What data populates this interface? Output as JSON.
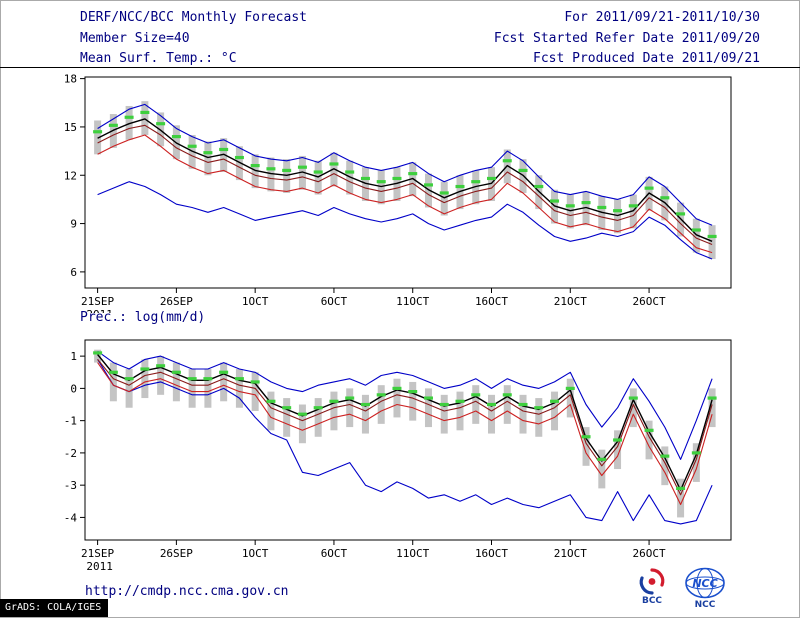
{
  "header": {
    "title": "DERF/NCC/BCC Monthly Forecast",
    "member_size": "Member Size=40",
    "for_range": "For 2011/09/21-2011/10/30",
    "refer_date": "Fcst Started Refer Date 2011/09/20",
    "produced_date": "Fcst Produced Date 2011/09/21"
  },
  "footer": {
    "url": "http://cmdp.ncc.cma.gov.cn",
    "grads_credit": "GrADS: COLA/IGES",
    "logos": [
      {
        "label": "BCC"
      },
      {
        "label": "NCC"
      }
    ]
  },
  "colors": {
    "header_text": "#000080",
    "envelope_blue": "#0000c8",
    "spread_red_dark": "#8b1a1a",
    "spread_red": "#cc2222",
    "mean_black": "#000000",
    "median_green": "#3ecf3e",
    "range_bar_gray": "#c4c4c4"
  },
  "chart_data": [
    {
      "type": "line",
      "title": "Mean Surf. Temp.: °C",
      "x_tick_labels": [
        "21SEP",
        "26SEP",
        "1OCT",
        "6OCT",
        "11OCT",
        "16OCT",
        "21OCT",
        "26OCT"
      ],
      "x_tick_positions": [
        0,
        5,
        10,
        15,
        20,
        25,
        30,
        35
      ],
      "x_sub_label": "2011",
      "xlim": [
        -0.8,
        40.2
      ],
      "ylim": [
        5.0,
        18.1
      ],
      "yticks": [
        6,
        9,
        12,
        15,
        18
      ],
      "grid": false,
      "legend": "none",
      "bars": {
        "name": "ensemble-range-bars",
        "color": "#c4c4c4",
        "top": [
          15.4,
          15.8,
          16.3,
          16.6,
          15.9,
          15.1,
          14.5,
          14.1,
          14.3,
          13.8,
          13.3,
          13.1,
          13.0,
          13.2,
          12.9,
          13.4,
          12.9,
          12.5,
          12.3,
          12.5,
          12.8,
          12.1,
          11.6,
          12.0,
          12.3,
          12.5,
          13.6,
          13.0,
          12.0,
          11.1,
          10.8,
          11.0,
          10.7,
          10.5,
          10.8,
          11.9,
          11.3,
          10.3,
          9.3,
          8.9
        ],
        "bottom": [
          13.3,
          13.7,
          14.2,
          14.5,
          13.8,
          13.0,
          12.4,
          12.0,
          12.2,
          11.7,
          11.2,
          11.0,
          10.9,
          11.1,
          10.8,
          11.3,
          10.8,
          10.4,
          10.2,
          10.4,
          10.7,
          10.0,
          9.5,
          9.9,
          10.2,
          10.4,
          11.5,
          10.9,
          9.9,
          9.0,
          8.7,
          8.9,
          8.6,
          8.4,
          8.7,
          9.8,
          9.2,
          8.2,
          7.2,
          6.8
        ]
      },
      "series": [
        {
          "name": "ensemble-max",
          "color": "#0000c8",
          "width": 1.1,
          "values": [
            14.9,
            15.5,
            16.1,
            16.4,
            15.7,
            14.9,
            14.4,
            14.0,
            14.2,
            13.7,
            13.2,
            13.0,
            12.9,
            13.1,
            12.8,
            13.4,
            12.9,
            12.5,
            12.3,
            12.5,
            12.8,
            12.1,
            11.6,
            12.0,
            12.3,
            12.5,
            13.5,
            12.9,
            11.9,
            11.0,
            10.8,
            11.0,
            10.7,
            10.5,
            10.8,
            11.9,
            11.3,
            10.3,
            9.3,
            8.9
          ]
        },
        {
          "name": "ensemble-min",
          "color": "#0000c8",
          "width": 1.1,
          "values": [
            10.8,
            11.2,
            11.6,
            11.3,
            10.8,
            10.2,
            10.0,
            9.7,
            10.0,
            9.6,
            9.2,
            9.4,
            9.6,
            9.8,
            9.5,
            10.0,
            9.6,
            9.3,
            9.1,
            9.3,
            9.6,
            9.0,
            8.6,
            8.9,
            9.2,
            9.4,
            10.2,
            9.7,
            8.9,
            8.2,
            7.9,
            8.1,
            8.4,
            8.2,
            8.5,
            9.4,
            8.9,
            8.0,
            7.2,
            6.8
          ]
        },
        {
          "name": "spread-upper",
          "color": "#8b1a1a",
          "width": 1.1,
          "values": [
            14.0,
            14.5,
            14.9,
            15.1,
            14.5,
            13.7,
            13.2,
            12.8,
            13.0,
            12.5,
            12.0,
            11.8,
            11.7,
            11.9,
            11.6,
            12.1,
            11.6,
            11.2,
            11.0,
            11.2,
            11.5,
            10.8,
            10.3,
            10.7,
            11.0,
            11.2,
            12.2,
            11.6,
            10.7,
            9.8,
            9.5,
            9.7,
            9.4,
            9.2,
            9.5,
            10.6,
            10.0,
            9.0,
            8.1,
            7.7
          ]
        },
        {
          "name": "spread-lower",
          "color": "#cc2222",
          "width": 1.1,
          "values": [
            13.3,
            13.8,
            14.2,
            14.5,
            13.8,
            13.0,
            12.5,
            12.1,
            12.3,
            11.8,
            11.3,
            11.1,
            11.0,
            11.2,
            10.9,
            11.4,
            10.9,
            10.5,
            10.3,
            10.5,
            10.8,
            10.1,
            9.6,
            10.0,
            10.3,
            10.5,
            11.5,
            10.9,
            10.0,
            9.1,
            8.8,
            9.0,
            8.7,
            8.5,
            8.8,
            9.9,
            9.3,
            8.4,
            7.5,
            7.2
          ]
        },
        {
          "name": "ensemble-mean",
          "color": "#000000",
          "width": 1.4,
          "values": [
            14.3,
            14.8,
            15.2,
            15.5,
            14.8,
            14.0,
            13.5,
            13.1,
            13.3,
            12.8,
            12.3,
            12.1,
            12.0,
            12.2,
            11.9,
            12.4,
            11.9,
            11.5,
            11.3,
            11.5,
            11.8,
            11.1,
            10.6,
            11.0,
            11.3,
            11.5,
            12.6,
            12.0,
            11.0,
            10.1,
            9.8,
            10.0,
            9.7,
            9.5,
            9.8,
            10.9,
            10.3,
            9.3,
            8.3,
            7.9
          ]
        }
      ],
      "markers": {
        "name": "ensemble-median-dashes",
        "color": "#3ecf3e",
        "values": [
          14.7,
          15.1,
          15.6,
          15.9,
          15.2,
          14.4,
          13.8,
          13.4,
          13.6,
          13.1,
          12.6,
          12.4,
          12.3,
          12.5,
          12.2,
          12.7,
          12.2,
          11.8,
          11.6,
          11.8,
          12.1,
          11.4,
          10.9,
          11.3,
          11.6,
          11.8,
          12.9,
          12.3,
          11.3,
          10.4,
          10.1,
          10.3,
          10.0,
          9.8,
          10.1,
          11.2,
          10.6,
          9.6,
          8.6,
          8.2
        ]
      }
    },
    {
      "type": "line",
      "title": "Prec.: log(mm/d)",
      "x_tick_labels": [
        "21SEP",
        "26SEP",
        "1OCT",
        "6OCT",
        "11OCT",
        "16OCT",
        "21OCT",
        "26OCT"
      ],
      "x_tick_positions": [
        0,
        5,
        10,
        15,
        20,
        25,
        30,
        35
      ],
      "x_sub_label": "2011",
      "xlim": [
        -0.8,
        40.2
      ],
      "ylim": [
        -4.7,
        1.5
      ],
      "yticks": [
        1,
        0,
        -1,
        -2,
        -3,
        -4
      ],
      "grid": false,
      "legend": "none",
      "bars": {
        "name": "ensemble-range-bars",
        "color": "#c4c4c4",
        "top": [
          1.2,
          0.8,
          0.6,
          0.9,
          1.0,
          0.8,
          0.6,
          0.6,
          0.8,
          0.6,
          0.5,
          -0.1,
          -0.3,
          -0.5,
          -0.3,
          -0.1,
          0.0,
          -0.2,
          0.1,
          0.3,
          0.2,
          0.0,
          -0.2,
          -0.1,
          0.1,
          -0.2,
          0.1,
          -0.2,
          -0.3,
          -0.1,
          0.3,
          -1.2,
          -1.9,
          -1.3,
          0.0,
          -1.0,
          -1.8,
          -2.8,
          -1.7,
          0.0
        ],
        "bottom": [
          0.8,
          -0.4,
          -0.6,
          -0.3,
          -0.2,
          -0.4,
          -0.6,
          -0.6,
          -0.4,
          -0.6,
          -0.7,
          -1.3,
          -1.5,
          -1.7,
          -1.5,
          -1.3,
          -1.2,
          -1.4,
          -1.1,
          -0.9,
          -1.0,
          -1.2,
          -1.4,
          -1.3,
          -1.1,
          -1.4,
          -1.1,
          -1.4,
          -1.5,
          -1.3,
          -0.9,
          -2.4,
          -3.1,
          -2.5,
          -1.2,
          -2.2,
          -3.0,
          -4.0,
          -2.9,
          -1.2
        ]
      },
      "series": [
        {
          "name": "ensemble-max",
          "color": "#0000c8",
          "width": 1.1,
          "values": [
            1.15,
            0.8,
            0.6,
            0.9,
            1.0,
            0.8,
            0.6,
            0.6,
            0.8,
            0.6,
            0.5,
            0.2,
            0.0,
            -0.1,
            0.1,
            0.2,
            0.3,
            0.1,
            0.4,
            0.5,
            0.4,
            0.2,
            0.0,
            0.1,
            0.3,
            0.0,
            0.3,
            0.1,
            0.0,
            0.2,
            0.5,
            -0.5,
            -1.2,
            -0.6,
            0.3,
            -0.4,
            -1.2,
            -2.2,
            -1.0,
            0.3
          ]
        },
        {
          "name": "ensemble-min",
          "color": "#0000c8",
          "width": 1.1,
          "values": [
            0.9,
            0.1,
            -0.1,
            0.1,
            0.2,
            0.0,
            -0.2,
            -0.2,
            0.0,
            -0.3,
            -0.9,
            -1.4,
            -1.6,
            -2.6,
            -2.7,
            -2.5,
            -2.3,
            -3.0,
            -3.2,
            -2.9,
            -3.1,
            -3.4,
            -3.3,
            -3.5,
            -3.3,
            -3.6,
            -3.4,
            -3.6,
            -3.7,
            -3.5,
            -3.3,
            -4.0,
            -4.1,
            -3.2,
            -4.1,
            -3.3,
            -4.1,
            -4.2,
            -4.1,
            -3.0
          ]
        },
        {
          "name": "spread-upper",
          "color": "#8b1a1a",
          "width": 1.1,
          "values": [
            0.9,
            0.3,
            0.1,
            0.4,
            0.5,
            0.3,
            0.1,
            0.1,
            0.3,
            0.1,
            0.0,
            -0.6,
            -0.8,
            -1.0,
            -0.8,
            -0.6,
            -0.5,
            -0.7,
            -0.4,
            -0.2,
            -0.3,
            -0.5,
            -0.7,
            -0.6,
            -0.4,
            -0.7,
            -0.4,
            -0.7,
            -0.8,
            -0.6,
            -0.2,
            -1.7,
            -2.4,
            -1.8,
            -0.5,
            -1.5,
            -2.3,
            -3.3,
            -2.2,
            -0.5
          ]
        },
        {
          "name": "spread-lower",
          "color": "#cc2222",
          "width": 1.1,
          "values": [
            0.8,
            0.1,
            -0.1,
            0.2,
            0.3,
            0.1,
            -0.1,
            -0.1,
            0.1,
            -0.1,
            -0.2,
            -0.9,
            -1.1,
            -1.3,
            -1.1,
            -0.9,
            -0.8,
            -1.0,
            -0.7,
            -0.5,
            -0.6,
            -0.8,
            -1.0,
            -0.9,
            -0.7,
            -1.0,
            -0.7,
            -1.0,
            -1.1,
            -0.9,
            -0.5,
            -2.0,
            -2.7,
            -2.1,
            -0.8,
            -1.8,
            -2.6,
            -3.6,
            -2.5,
            -0.8
          ]
        },
        {
          "name": "ensemble-mean",
          "color": "#000000",
          "width": 1.4,
          "values": [
            1.05,
            0.45,
            0.25,
            0.55,
            0.65,
            0.45,
            0.25,
            0.25,
            0.45,
            0.25,
            0.15,
            -0.45,
            -0.65,
            -0.85,
            -0.65,
            -0.45,
            -0.35,
            -0.55,
            -0.25,
            -0.05,
            -0.15,
            -0.35,
            -0.55,
            -0.45,
            -0.25,
            -0.55,
            -0.25,
            -0.55,
            -0.65,
            -0.45,
            -0.05,
            -1.55,
            -2.25,
            -1.65,
            -0.35,
            -1.35,
            -2.15,
            -3.15,
            -2.05,
            -0.35
          ]
        }
      ],
      "markers": {
        "name": "ensemble-median-dashes",
        "color": "#3ecf3e",
        "values": [
          1.1,
          0.5,
          0.3,
          0.6,
          0.7,
          0.5,
          0.3,
          0.3,
          0.5,
          0.3,
          0.2,
          -0.4,
          -0.6,
          -0.8,
          -0.6,
          -0.4,
          -0.3,
          -0.5,
          -0.2,
          0.0,
          -0.1,
          -0.3,
          -0.5,
          -0.4,
          -0.2,
          -0.5,
          -0.2,
          -0.5,
          -0.6,
          -0.4,
          0.0,
          -1.5,
          -2.2,
          -1.6,
          -0.3,
          -1.3,
          -2.1,
          -3.1,
          -2.0,
          -0.3
        ]
      }
    }
  ]
}
